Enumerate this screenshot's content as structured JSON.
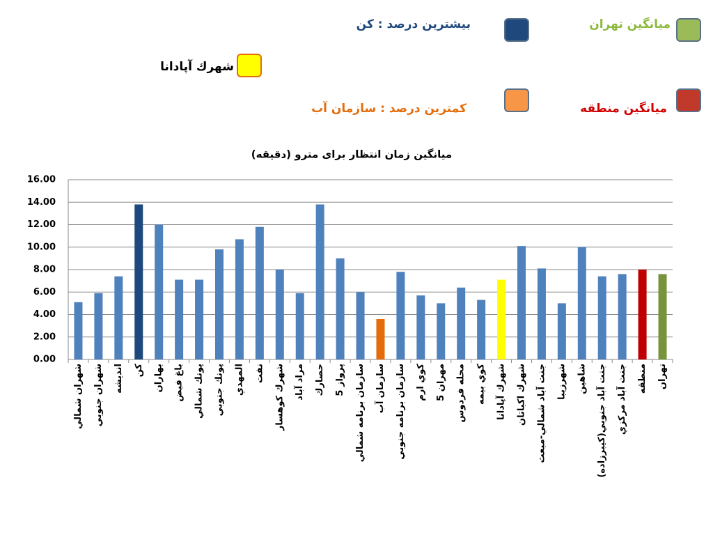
{
  "chart_data": {
    "type": "bar",
    "title": "ميانگين زمان انتظار براى مترو (دقيقه)",
    "annotations": [
      {
        "text": "بيشترين درصد   :   كن",
        "color": "#1f497d",
        "box_color": "#1f497d"
      },
      {
        "text": "ميانگين    تهران",
        "color": "#8cb93d",
        "box_color": "#9bbb59"
      },
      {
        "text": "شهرك آپادانا",
        "color": "#000000",
        "box_color": "#ffff00"
      },
      {
        "text": "كمترين درصد   :   سازمان آب",
        "color": "#e46c0a",
        "box_color": "#f79646"
      },
      {
        "text": "ميانگين منطقه",
        "color": "#d00000",
        "box_color": "#c0392b"
      }
    ],
    "categories": [
      "شهران شمالي",
      "شهران جنوبي",
      "انديشه",
      "كن",
      "بهاران",
      "باغ فيض",
      "پونك شمالي",
      "پونك جنوبي",
      "المهدي",
      "نفت",
      "شهرك كوهسار",
      "مراد آباد",
      "حصارك",
      "پرواز 5",
      "سازمان برنامه شمالي",
      "سازمان آب",
      "سازمان برنامه جنوبي",
      "كوي ارم",
      "مهران 5",
      "محله فردوس",
      "كوي بيمه",
      "شهرك آپادانا",
      "شهرك اكباتان",
      "جنت آباد شمالي-مبعث",
      "شهرزيبا",
      "شاهين",
      "جنت آباد جنوبي(كيبرزاده)",
      "جنت آباد مركزي",
      "منطقه",
      "تهران"
    ],
    "values": [
      5.1,
      5.9,
      7.4,
      13.8,
      12.0,
      7.1,
      7.1,
      9.8,
      10.7,
      11.8,
      8.0,
      5.9,
      13.8,
      9.0,
      6.0,
      3.6,
      7.8,
      5.7,
      5.0,
      6.4,
      5.3,
      7.1,
      10.1,
      8.1,
      5.0,
      10.0,
      7.4,
      7.6,
      8.0,
      7.6
    ],
    "colors": [
      "#4f81bd",
      "#4f81bd",
      "#4f81bd",
      "#1f497d",
      "#4f81bd",
      "#4f81bd",
      "#4f81bd",
      "#4f81bd",
      "#4f81bd",
      "#4f81bd",
      "#4f81bd",
      "#4f81bd",
      "#4f81bd",
      "#4f81bd",
      "#4f81bd",
      "#e46c0a",
      "#4f81bd",
      "#4f81bd",
      "#4f81bd",
      "#4f81bd",
      "#4f81bd",
      "#ffff00",
      "#4f81bd",
      "#4f81bd",
      "#4f81bd",
      "#4f81bd",
      "#4f81bd",
      "#4f81bd",
      "#c00000",
      "#77933c"
    ],
    "ylim": [
      0,
      16
    ],
    "yticks": [
      {
        "value": 0,
        "label": "0.00"
      },
      {
        "value": 2,
        "label": "2.00"
      },
      {
        "value": 4,
        "label": "4.00"
      },
      {
        "value": 6,
        "label": "6.00"
      },
      {
        "value": 8,
        "label": "8.00"
      },
      {
        "value": 10,
        "label": "10.00"
      },
      {
        "value": 12,
        "label": "12.00"
      },
      {
        "value": 14,
        "label": "14.00"
      },
      {
        "value": 16,
        "label": "16.00"
      }
    ],
    "grid": true
  }
}
